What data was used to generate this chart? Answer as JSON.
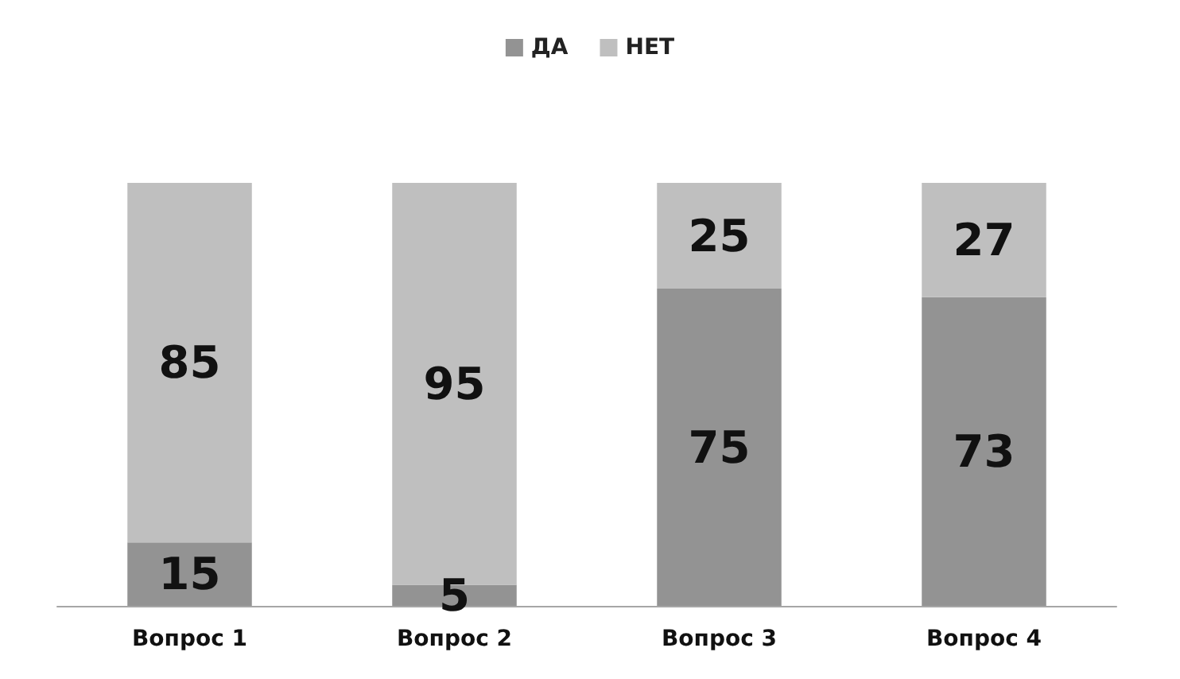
{
  "chart_data": {
    "type": "bar",
    "stacked": true,
    "categories": [
      "Вопрос 1",
      "Вопрос 2",
      "Вопрос 3",
      "Вопрос 4"
    ],
    "series": [
      {
        "name": "ДА",
        "color": "#939393",
        "values": [
          15,
          5,
          75,
          73
        ]
      },
      {
        "name": "НЕТ",
        "color": "#bfbfbf",
        "values": [
          85,
          95,
          25,
          27
        ]
      }
    ],
    "data_labels": true,
    "legend": "top"
  }
}
